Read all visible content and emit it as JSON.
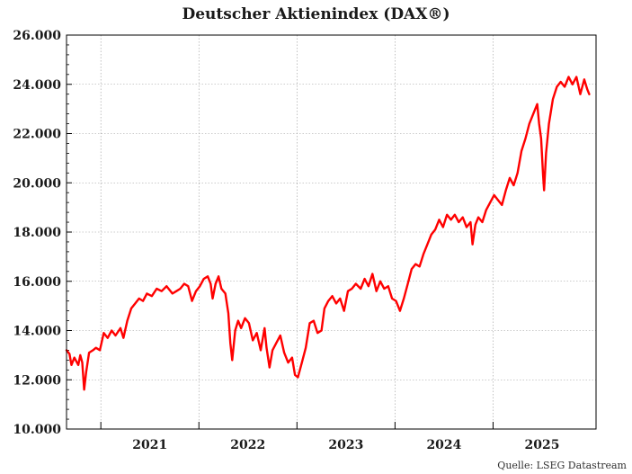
{
  "chart_data": {
    "type": "line",
    "title": "Deutscher Aktienindex (DAX®)",
    "source": "Quelle: LSEG Datastream",
    "xlabel": "",
    "ylabel": "",
    "xlim": [
      2020.3,
      2025.7
    ],
    "ylim": [
      10000,
      26000
    ],
    "y_ticks": [
      10000,
      12000,
      14000,
      16000,
      18000,
      20000,
      22000,
      24000,
      26000
    ],
    "y_tick_labels": [
      "10.000",
      "12.000",
      "14.000",
      "16.000",
      "18.000",
      "20.000",
      "22.000",
      "24.000",
      "26.000"
    ],
    "x_tick_labels": [
      "2021",
      "2022",
      "2023",
      "2024",
      "2025"
    ],
    "x_label_positions": [
      2021.0,
      2022.0,
      2023.0,
      2024.0,
      2025.0
    ],
    "grid": true,
    "line_color": "#ff0000",
    "series": [
      {
        "values": [
          [
            2020.3,
            13200
          ],
          [
            2020.33,
            13050
          ],
          [
            2020.35,
            12600
          ],
          [
            2020.38,
            12900
          ],
          [
            2020.42,
            12600
          ],
          [
            2020.44,
            13000
          ],
          [
            2020.46,
            12700
          ],
          [
            2020.48,
            11600
          ],
          [
            2020.5,
            12300
          ],
          [
            2020.53,
            13100
          ],
          [
            2020.57,
            13200
          ],
          [
            2020.6,
            13300
          ],
          [
            2020.64,
            13200
          ],
          [
            2020.68,
            13900
          ],
          [
            2020.72,
            13700
          ],
          [
            2020.76,
            14000
          ],
          [
            2020.8,
            13800
          ],
          [
            2020.85,
            14100
          ],
          [
            2020.88,
            13700
          ],
          [
            2020.92,
            14400
          ],
          [
            2020.96,
            14900
          ],
          [
            2021.0,
            15100
          ],
          [
            2021.04,
            15300
          ],
          [
            2021.08,
            15200
          ],
          [
            2021.12,
            15500
          ],
          [
            2021.17,
            15400
          ],
          [
            2021.22,
            15700
          ],
          [
            2021.27,
            15600
          ],
          [
            2021.32,
            15800
          ],
          [
            2021.38,
            15500
          ],
          [
            2021.42,
            15600
          ],
          [
            2021.46,
            15700
          ],
          [
            2021.5,
            15900
          ],
          [
            2021.54,
            15800
          ],
          [
            2021.58,
            15200
          ],
          [
            2021.62,
            15600
          ],
          [
            2021.66,
            15800
          ],
          [
            2021.7,
            16100
          ],
          [
            2021.74,
            16200
          ],
          [
            2021.77,
            15900
          ],
          [
            2021.79,
            15300
          ],
          [
            2021.82,
            15900
          ],
          [
            2021.85,
            16200
          ],
          [
            2021.88,
            15700
          ],
          [
            2021.92,
            15500
          ],
          [
            2021.95,
            14700
          ],
          [
            2021.97,
            13500
          ],
          [
            2021.99,
            12800
          ],
          [
            2022.02,
            14000
          ],
          [
            2022.05,
            14400
          ],
          [
            2022.08,
            14100
          ],
          [
            2022.12,
            14500
          ],
          [
            2022.16,
            14300
          ],
          [
            2022.2,
            13600
          ],
          [
            2022.24,
            13900
          ],
          [
            2022.28,
            13200
          ],
          [
            2022.32,
            14100
          ],
          [
            2022.34,
            13300
          ],
          [
            2022.37,
            12500
          ],
          [
            2022.4,
            13200
          ],
          [
            2022.44,
            13500
          ],
          [
            2022.48,
            13800
          ],
          [
            2022.52,
            13100
          ],
          [
            2022.56,
            12700
          ],
          [
            2022.6,
            12900
          ],
          [
            2022.63,
            12200
          ],
          [
            2022.66,
            12100
          ],
          [
            2022.7,
            12700
          ],
          [
            2022.74,
            13300
          ],
          [
            2022.78,
            14300
          ],
          [
            2022.82,
            14400
          ],
          [
            2022.86,
            13900
          ],
          [
            2022.9,
            14000
          ],
          [
            2022.93,
            14900
          ],
          [
            2022.97,
            15200
          ],
          [
            2023.01,
            15400
          ],
          [
            2023.05,
            15100
          ],
          [
            2023.09,
            15300
          ],
          [
            2023.13,
            14800
          ],
          [
            2023.17,
            15600
          ],
          [
            2023.21,
            15700
          ],
          [
            2023.25,
            15900
          ],
          [
            2023.3,
            15700
          ],
          [
            2023.34,
            16100
          ],
          [
            2023.38,
            15800
          ],
          [
            2023.42,
            16300
          ],
          [
            2023.46,
            15600
          ],
          [
            2023.5,
            16000
          ],
          [
            2023.54,
            15700
          ],
          [
            2023.58,
            15800
          ],
          [
            2023.62,
            15300
          ],
          [
            2023.66,
            15200
          ],
          [
            2023.7,
            14800
          ],
          [
            2023.74,
            15300
          ],
          [
            2023.78,
            15900
          ],
          [
            2023.82,
            16500
          ],
          [
            2023.86,
            16700
          ],
          [
            2023.9,
            16600
          ],
          [
            2023.94,
            17100
          ],
          [
            2023.98,
            17500
          ],
          [
            2024.02,
            17900
          ],
          [
            2024.06,
            18100
          ],
          [
            2024.1,
            18500
          ],
          [
            2024.14,
            18200
          ],
          [
            2024.18,
            18700
          ],
          [
            2024.22,
            18500
          ],
          [
            2024.26,
            18700
          ],
          [
            2024.3,
            18400
          ],
          [
            2024.34,
            18600
          ],
          [
            2024.38,
            18200
          ],
          [
            2024.42,
            18400
          ],
          [
            2024.44,
            17500
          ],
          [
            2024.47,
            18300
          ],
          [
            2024.5,
            18600
          ],
          [
            2024.54,
            18400
          ],
          [
            2024.58,
            18900
          ],
          [
            2024.62,
            19200
          ],
          [
            2024.66,
            19500
          ],
          [
            2024.7,
            19300
          ],
          [
            2024.74,
            19100
          ],
          [
            2024.78,
            19700
          ],
          [
            2024.82,
            20200
          ],
          [
            2024.86,
            19900
          ],
          [
            2024.9,
            20400
          ],
          [
            2024.94,
            21300
          ],
          [
            2024.98,
            21800
          ],
          [
            2025.02,
            22400
          ],
          [
            2025.06,
            22800
          ],
          [
            2025.1,
            23200
          ],
          [
            2025.12,
            22400
          ],
          [
            2025.14,
            21800
          ],
          [
            2025.16,
            20300
          ],
          [
            2025.17,
            19700
          ],
          [
            2025.19,
            21200
          ],
          [
            2025.22,
            22400
          ],
          [
            2025.26,
            23400
          ],
          [
            2025.3,
            23900
          ],
          [
            2025.34,
            24100
          ],
          [
            2025.38,
            23900
          ],
          [
            2025.42,
            24300
          ],
          [
            2025.46,
            24000
          ],
          [
            2025.5,
            24300
          ],
          [
            2025.54,
            23600
          ],
          [
            2025.58,
            24200
          ],
          [
            2025.61,
            23800
          ],
          [
            2025.63,
            23600
          ]
        ]
      }
    ]
  }
}
